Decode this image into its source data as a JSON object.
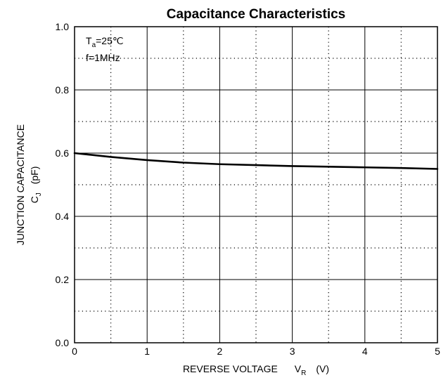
{
  "chart_data": {
    "type": "line",
    "title": "Capacitance Characteristics",
    "xlabel": {
      "main": "REVERSE VOLTAGE",
      "symbol": "V",
      "subscript": "R",
      "unit": "(V)"
    },
    "ylabel": {
      "main": "JUNCTION CAPACITANCE",
      "symbol": "C",
      "subscript": "J",
      "unit": "(pF)"
    },
    "xlim": [
      0,
      5
    ],
    "ylim": [
      0,
      1.0
    ],
    "x_ticks": [
      "0",
      "1",
      "2",
      "3",
      "4",
      "5"
    ],
    "y_ticks": [
      "0.0",
      "0.2",
      "0.4",
      "0.6",
      "0.8",
      "1.0"
    ],
    "grid": {
      "major": "solid",
      "minor": "dotted"
    },
    "annotations": [
      {
        "symbol": "T",
        "subscript": "a",
        "text": "=25℃"
      },
      {
        "text": "f=1MHz"
      }
    ],
    "series": [
      {
        "x": [
          0,
          0.25,
          0.5,
          1.0,
          1.5,
          2.0,
          2.5,
          3.0,
          3.5,
          4.0,
          4.5,
          5.0
        ],
        "y": [
          0.6,
          0.594,
          0.588,
          0.578,
          0.57,
          0.565,
          0.562,
          0.559,
          0.557,
          0.555,
          0.553,
          0.55
        ]
      }
    ],
    "line_color": "#000000"
  }
}
